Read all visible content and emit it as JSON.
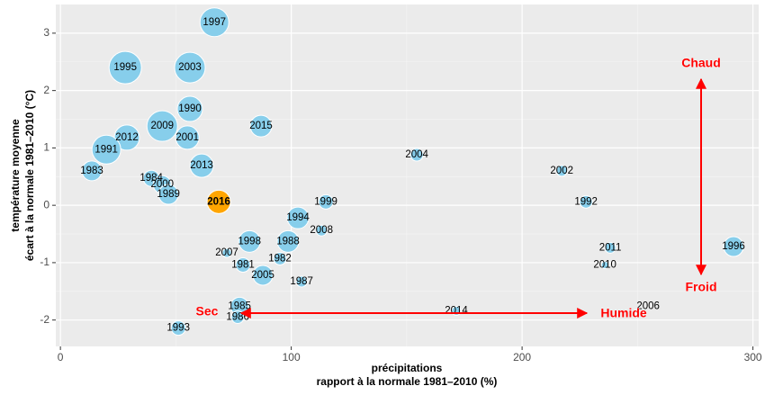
{
  "chart_data": {
    "type": "scatter",
    "xlabel": [
      "précipitations",
      "rapport à la normale 1981–2010 (%)"
    ],
    "ylabel": [
      "température moyenne",
      "écart à la normale 1981–2010 (°C)"
    ],
    "xlim": [
      -2,
      302.5
    ],
    "ylim": [
      -2.46,
      3.5
    ],
    "xticks": [
      0,
      100,
      200,
      300
    ],
    "yticks": [
      -2,
      -1,
      0,
      1,
      2,
      3
    ],
    "xminor_ticks": [
      50,
      150,
      250
    ],
    "yminor_ticks": [
      -1.5,
      -0.5,
      0.5,
      1.5,
      2.5
    ],
    "grid": true,
    "labels": [
      "1997",
      "1995",
      "2003",
      "1990",
      "2009",
      "2012",
      "2001",
      "1991",
      "2015",
      "1983",
      "2013",
      "1984",
      "2000",
      "1989",
      "2016",
      "2004",
      "2002",
      "1992",
      "1999",
      "1994",
      "2008",
      "1998",
      "1988",
      "2011",
      "1996",
      "2007",
      "1982",
      "1981",
      "2010",
      "2005",
      "1987",
      "1985",
      "1986",
      "2014",
      "2006",
      "1993"
    ],
    "x": [
      66.7,
      28.1,
      56.1,
      56.1,
      44.1,
      28.8,
      55.0,
      19.9,
      86.9,
      13.6,
      61.2,
      39.4,
      44.1,
      46.8,
      68.6,
      154.4,
      217.2,
      227.7,
      115.0,
      102.9,
      113.1,
      81.9,
      98.6,
      238.2,
      291.6,
      72.1,
      95.1,
      79.1,
      235.9,
      87.7,
      104.5,
      77.6,
      76.8,
      171.5,
      254.6,
      51.1
    ],
    "values": [
      3.19,
      2.4,
      2.4,
      1.68,
      1.38,
      1.18,
      1.18,
      0.97,
      1.38,
      0.6,
      0.69,
      0.47,
      0.36,
      0.19,
      0.06,
      0.88,
      0.6,
      0.06,
      0.06,
      -0.22,
      -0.44,
      -0.63,
      -0.63,
      -0.74,
      -0.72,
      -0.83,
      -0.93,
      -1.04,
      -1.04,
      -1.22,
      -1.33,
      -1.76,
      -1.95,
      -1.84,
      -1.76,
      -2.14
    ],
    "sizes": [
      16,
      18,
      17,
      14,
      17,
      14,
      13,
      16,
      12,
      11,
      13,
      9,
      10,
      11,
      13,
      7,
      6,
      7,
      8,
      12,
      6,
      12,
      12,
      6,
      11,
      5,
      7,
      8,
      4,
      11,
      6,
      10,
      7,
      5,
      0,
      8
    ],
    "colors": [
      "#87ceeb",
      "#87ceeb",
      "#87ceeb",
      "#87ceeb",
      "#87ceeb",
      "#87ceeb",
      "#87ceeb",
      "#87ceeb",
      "#87ceeb",
      "#87ceeb",
      "#87ceeb",
      "#87ceeb",
      "#87ceeb",
      "#87ceeb",
      "#ffa500",
      "#87ceeb",
      "#87ceeb",
      "#87ceeb",
      "#87ceeb",
      "#87ceeb",
      "#87ceeb",
      "#87ceeb",
      "#87ceeb",
      "#87ceeb",
      "#87ceeb",
      "#87ceeb",
      "#87ceeb",
      "#87ceeb",
      "#87ceeb",
      "#87ceeb",
      "#87ceeb",
      "#87ceeb",
      "#87ceeb",
      "#87ceeb",
      "#87ceeb",
      "#87ceeb"
    ],
    "label_colors": [
      "#000000",
      "#000000",
      "#000000",
      "#000000",
      "#000000",
      "#000000",
      "#000000",
      "#000000",
      "#000000",
      "#000000",
      "#000000",
      "#000000",
      "#000000",
      "#000000",
      "#ff0000",
      "#000000",
      "#000000",
      "#000000",
      "#000000",
      "#000000",
      "#000000",
      "#000000",
      "#000000",
      "#000000",
      "#000000",
      "#000000",
      "#000000",
      "#000000",
      "#000000",
      "#000000",
      "#000000",
      "#000000",
      "#000000",
      "#000000",
      "#000000",
      "#000000"
    ],
    "annotations": [
      "Chaud",
      "Froid",
      "Sec",
      "Humide"
    ]
  }
}
